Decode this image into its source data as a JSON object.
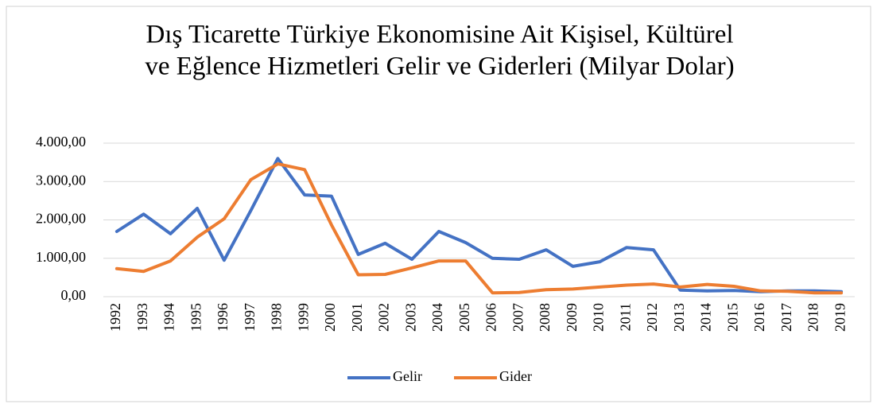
{
  "chart_data": {
    "type": "line",
    "title": [
      "Dış Ticarette Türkiye Ekonomisine Ait  Kişisel, Kültürel",
      "ve Eğlence Hizmetleri Gelir ve Giderleri (Milyar Dolar)"
    ],
    "categories": [
      "1992",
      "1993",
      "1994",
      "1995",
      "1996",
      "1997",
      "1998",
      "1999",
      "2000",
      "2001",
      "2002",
      "2003",
      "2004",
      "2005",
      "2006",
      "2007",
      "2008",
      "2009",
      "2010",
      "2011",
      "2012",
      "2013",
      "2014",
      "2015",
      "2016",
      "2017",
      "2018",
      "2019"
    ],
    "series": [
      {
        "name": "Gelir",
        "color": "#4472c4",
        "values": [
          1700,
          2150,
          1640,
          2300,
          950,
          2250,
          3600,
          2650,
          2620,
          1100,
          1390,
          975,
          1700,
          1410,
          1000,
          975,
          1220,
          790,
          910,
          1280,
          1220,
          170,
          150,
          160,
          130,
          150,
          150,
          130
        ]
      },
      {
        "name": "Gider",
        "color": "#ed7d31",
        "values": [
          730,
          660,
          930,
          1550,
          2030,
          3050,
          3460,
          3310,
          1870,
          570,
          580,
          750,
          930,
          930,
          100,
          110,
          180,
          200,
          250,
          300,
          330,
          250,
          320,
          270,
          150,
          140,
          100,
          100
        ]
      }
    ],
    "ylim": [
      0,
      4000
    ],
    "yticks": [
      {
        "value": 0,
        "label": "0,00"
      },
      {
        "value": 1000,
        "label": "1.000,00"
      },
      {
        "value": 2000,
        "label": "2.000,00"
      },
      {
        "value": 3000,
        "label": "3.000,00"
      },
      {
        "value": 4000,
        "label": "4.000,00"
      }
    ],
    "grid": true,
    "legend": "bottom"
  }
}
